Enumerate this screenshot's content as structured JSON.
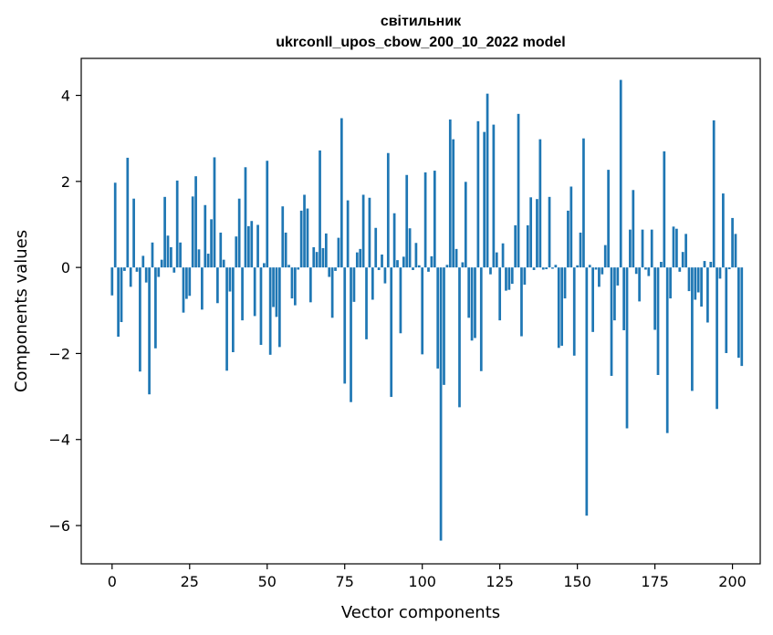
{
  "colors": {
    "bar": "#1f77b4",
    "axis": "#000000",
    "background": "#ffffff"
  },
  "chart_data": {
    "type": "bar",
    "title": "світильник",
    "subtitle": "ukrconll_upos_cbow_200_10_2022 model",
    "xlabel": "Vector components",
    "ylabel": "Components values",
    "xlim": [
      -9.95,
      208.95
    ],
    "ylim": [
      -6.89,
      4.86
    ],
    "xticks": [
      0,
      25,
      50,
      75,
      100,
      125,
      150,
      175,
      200
    ],
    "xtick_labels": [
      "0",
      "25",
      "50",
      "75",
      "100",
      "125",
      "150",
      "175",
      "200"
    ],
    "yticks": [
      -6,
      -4,
      -2,
      0,
      2,
      4
    ],
    "ytick_labels": [
      "−6",
      "−4",
      "−2",
      "0",
      "2",
      "4"
    ],
    "grid": false,
    "values": [
      -0.65,
      1.97,
      -1.61,
      -1.27,
      -0.08,
      2.55,
      -0.45,
      1.6,
      -0.1,
      -2.42,
      0.27,
      -0.35,
      -2.95,
      0.58,
      -1.88,
      -0.22,
      0.18,
      1.64,
      0.74,
      0.47,
      -0.12,
      2.02,
      0.58,
      -1.05,
      -0.73,
      -0.66,
      1.65,
      2.12,
      0.42,
      -0.98,
      1.45,
      0.32,
      1.12,
      2.56,
      -0.83,
      0.81,
      0.18,
      -2.4,
      -0.56,
      -1.97,
      0.72,
      1.6,
      -1.23,
      2.33,
      0.96,
      1.08,
      -1.13,
      0.99,
      -1.8,
      0.1,
      2.48,
      -2.03,
      -0.92,
      -1.15,
      -1.85,
      1.42,
      0.81,
      0.06,
      -0.72,
      -0.88,
      -0.05,
      1.32,
      1.69,
      1.37,
      -0.81,
      0.47,
      0.36,
      2.72,
      0.45,
      0.79,
      -0.22,
      -1.17,
      -0.08,
      0.69,
      3.47,
      -2.7,
      1.56,
      -3.13,
      -0.8,
      0.35,
      0.43,
      1.69,
      -1.67,
      1.62,
      -0.75,
      0.92,
      -0.06,
      0.3,
      -0.37,
      2.66,
      -3.01,
      1.26,
      0.17,
      -1.53,
      0.25,
      2.15,
      0.91,
      -0.06,
      0.57,
      0.05,
      -2.02,
      2.21,
      -0.1,
      0.26,
      2.25,
      -2.35,
      -6.35,
      -2.73,
      0.06,
      3.44,
      2.98,
      0.43,
      -3.25,
      0.12,
      1.99,
      -1.17,
      -1.7,
      -1.64,
      3.4,
      -2.41,
      3.15,
      4.04,
      -0.16,
      3.32,
      0.35,
      -1.23,
      0.56,
      -0.54,
      -0.52,
      -0.38,
      0.98,
      3.57,
      -1.6,
      -0.4,
      0.98,
      1.63,
      -0.06,
      1.59,
      2.98,
      -0.05,
      -0.04,
      1.64,
      -0.03,
      0.06,
      -1.87,
      -1.82,
      -0.72,
      1.32,
      1.88,
      -2.05,
      0.05,
      0.81,
      3.0,
      -5.77,
      0.06,
      -1.5,
      -0.05,
      -0.45,
      -0.16,
      0.52,
      2.27,
      -2.52,
      -1.23,
      -0.42,
      4.36,
      -1.46,
      -3.74,
      0.88,
      1.8,
      -0.15,
      -0.79,
      0.88,
      -0.05,
      -0.2,
      0.88,
      -1.45,
      -2.5,
      0.13,
      2.7,
      -3.85,
      -0.72,
      0.95,
      0.9,
      -0.1,
      0.36,
      0.78,
      -0.55,
      -2.87,
      -0.75,
      -0.58,
      -0.91,
      0.15,
      -1.28,
      0.13,
      3.42,
      -3.29,
      -0.26,
      1.72,
      -1.99,
      -0.04,
      1.15,
      0.78,
      -2.1,
      -2.29
    ]
  }
}
